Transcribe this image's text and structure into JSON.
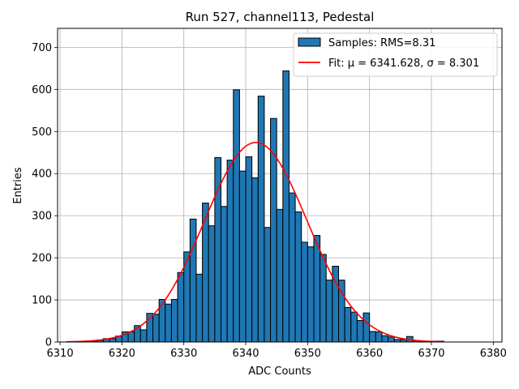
{
  "chart_data": {
    "type": "bar",
    "title": "Run 527, channel113, Pedestal",
    "xlabel": "ADC Counts",
    "ylabel": "Entries",
    "xlim": [
      6309.6,
      6381.4
    ],
    "ylim": [
      0,
      745
    ],
    "xticks": [
      6310,
      6320,
      6330,
      6340,
      6350,
      6360,
      6370,
      6380
    ],
    "yticks": [
      0,
      100,
      200,
      300,
      400,
      500,
      600,
      700
    ],
    "grid": true,
    "legend_position": "top-right",
    "bar_color": "#1f77b4",
    "fit_color": "#ff0000",
    "bin_start": 6311,
    "bin_width": 1,
    "series": [
      {
        "name": "Samples: RMS=8.31",
        "kind": "histogram",
        "values": [
          0,
          0,
          1,
          2,
          2,
          4,
          8,
          8,
          14,
          24,
          24,
          39,
          29,
          68,
          66,
          101,
          90,
          101,
          165,
          214,
          292,
          161,
          330,
          276,
          438,
          322,
          432,
          599,
          406,
          440,
          390,
          584,
          272,
          531,
          315,
          644,
          354,
          309,
          237,
          226,
          253,
          208,
          147,
          180,
          147,
          82,
          71,
          51,
          69,
          25,
          24,
          15,
          12,
          6,
          6,
          13,
          3,
          1,
          2,
          2,
          2,
          0,
          0,
          0,
          0,
          0,
          0,
          0,
          0
        ]
      },
      {
        "name": "Fit: μ = 6341.628, σ = 8.301",
        "kind": "gaussian",
        "mu": 6341.628,
        "sigma": 8.301,
        "amplitude": 474,
        "x_range": [
          6311,
          6372
        ]
      }
    ]
  }
}
